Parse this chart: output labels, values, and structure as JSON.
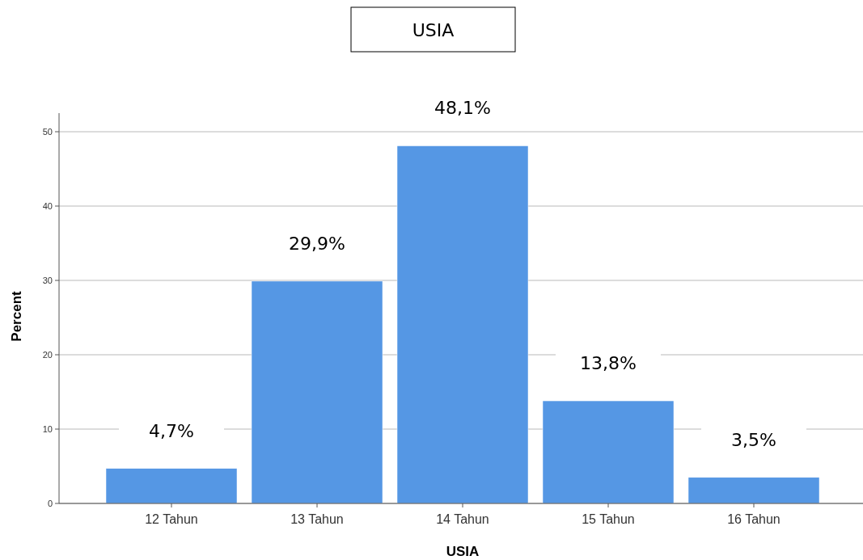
{
  "chart_data": {
    "type": "bar",
    "title": "USIA",
    "xlabel": "USIA",
    "ylabel": "Percent",
    "categories": [
      "12 Tahun",
      "13 Tahun",
      "14 Tahun",
      "15 Tahun",
      "16 Tahun"
    ],
    "values": [
      4.7,
      29.9,
      48.1,
      13.8,
      3.5
    ],
    "value_labels": [
      "4,7%",
      "29,9%",
      "48,1%",
      "13,8%",
      "3,5%"
    ],
    "color": "#5597e4",
    "ylim": [
      0,
      52.5
    ],
    "yticks": [
      0,
      10,
      20,
      30,
      40,
      50
    ],
    "grid": "y"
  }
}
